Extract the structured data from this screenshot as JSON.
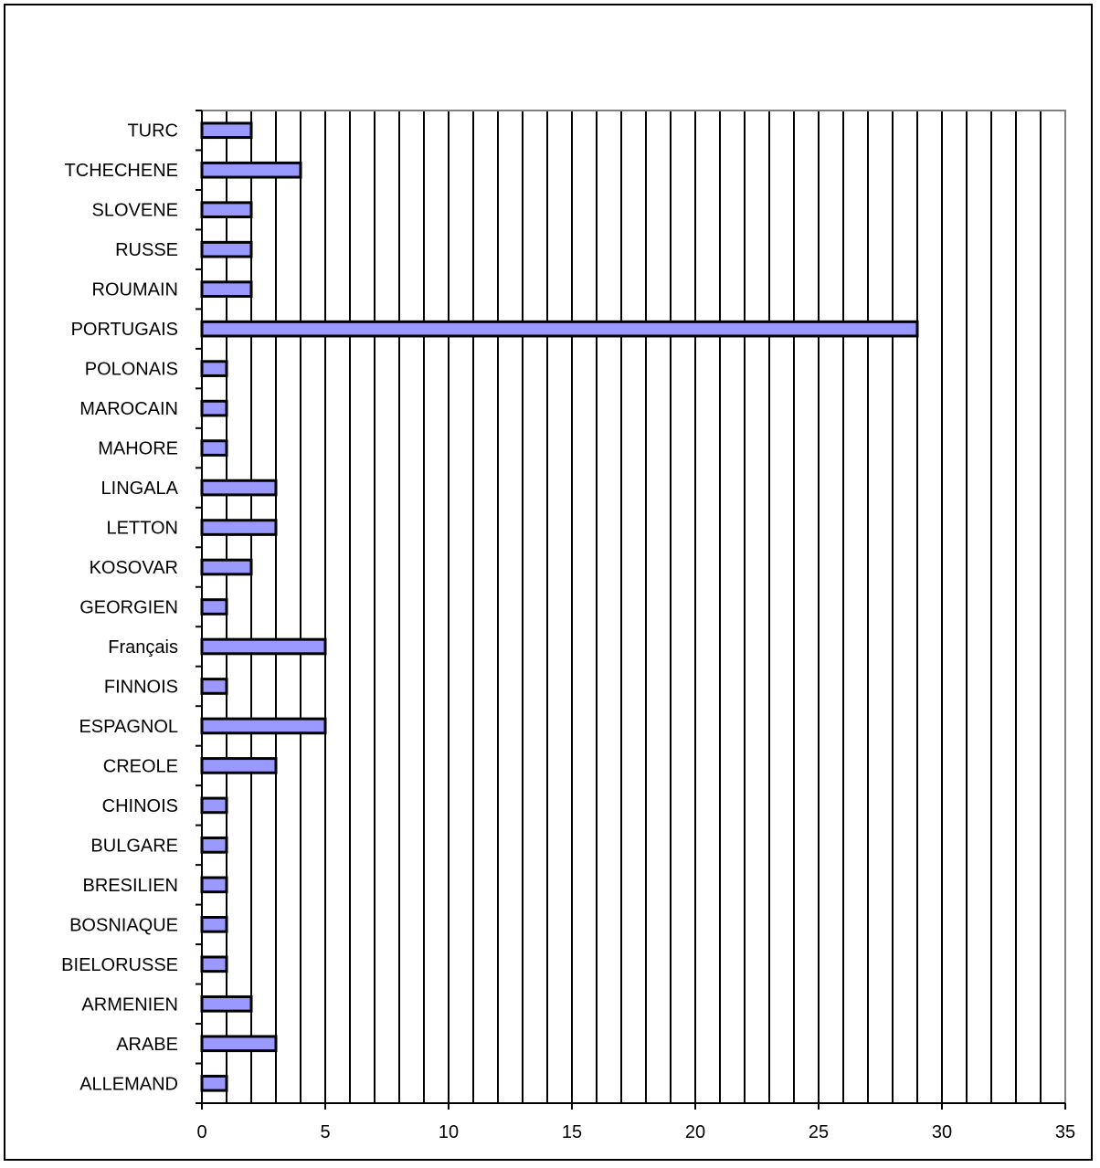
{
  "chart_data": {
    "type": "bar",
    "orientation": "horizontal",
    "categories": [
      "ALLEMAND",
      "ARABE",
      "ARMENIEN",
      "BIELORUSSE",
      "BOSNIAQUE",
      "BRESILIEN",
      "BULGARE",
      "CHINOIS",
      "CREOLE",
      "ESPAGNOL",
      "FINNOIS",
      "Français",
      "GEORGIEN",
      "KOSOVAR",
      "LETTON",
      "LINGALA",
      "MAHORE",
      "MAROCAIN",
      "POLONAIS",
      "PORTUGAIS",
      "ROUMAIN",
      "RUSSE",
      "SLOVENE",
      "TCHECHENE",
      "TURC"
    ],
    "values": [
      1,
      3,
      2,
      1,
      1,
      1,
      1,
      1,
      3,
      5,
      1,
      5,
      1,
      2,
      3,
      3,
      1,
      1,
      1,
      29,
      2,
      2,
      2,
      4,
      2
    ],
    "xlim": [
      0,
      35
    ],
    "xticks": [
      "0",
      "5",
      "10",
      "15",
      "20",
      "25",
      "30",
      "35"
    ],
    "title": "",
    "xlabel": "",
    "ylabel": "",
    "grid": "vertical lines at every unit",
    "legend": "none",
    "colors": {
      "bar_fill": "#9999ff",
      "bar_stroke": "#000000",
      "grid": "#000000",
      "plot_border": "#808080"
    }
  }
}
